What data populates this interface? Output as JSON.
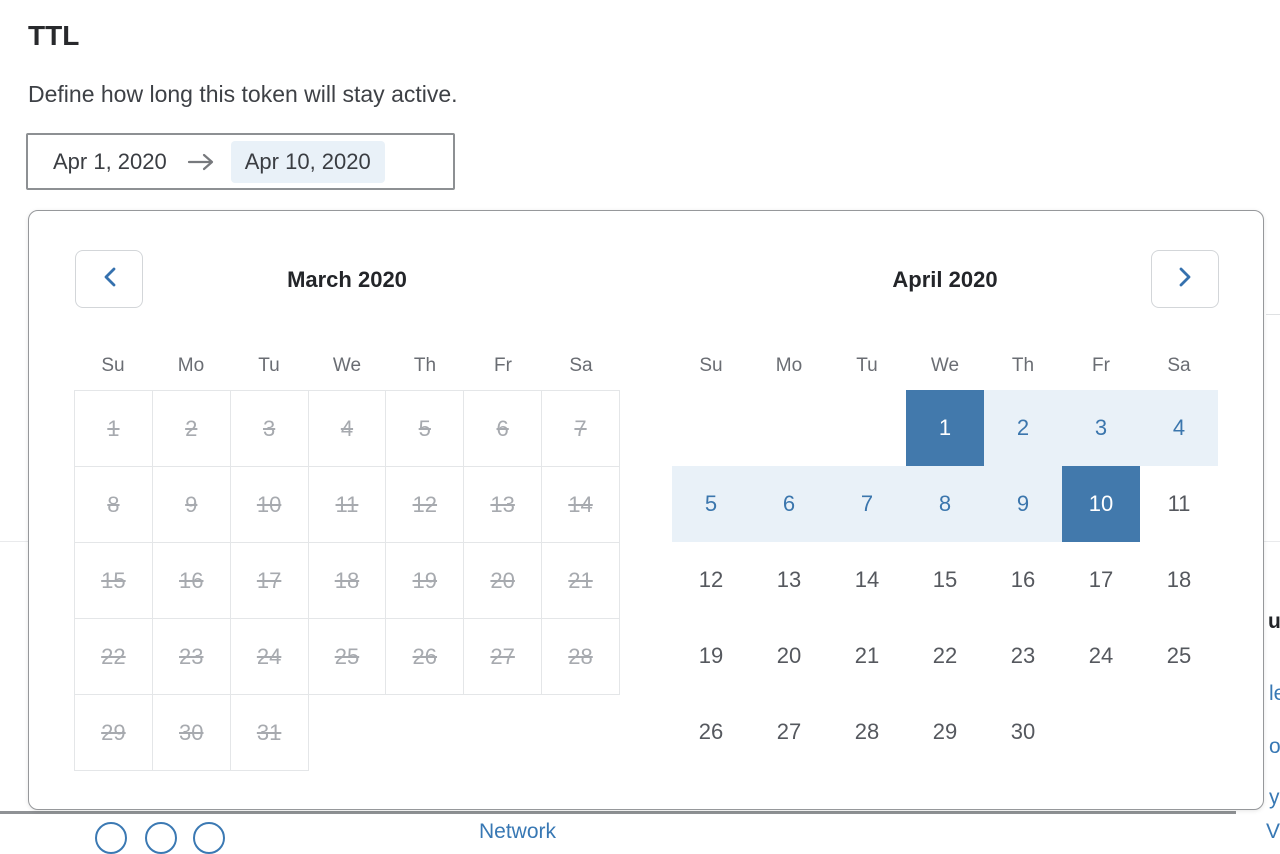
{
  "header": {
    "title": "TTL",
    "subtitle": "Define how long this token will stay active."
  },
  "date_range_input": {
    "start_value": "Apr 1, 2020",
    "arrow_icon": "arrow-right-icon",
    "end_value": "Apr 10, 2020"
  },
  "calendar": {
    "prev_icon": "chevron-left-icon",
    "next_icon": "chevron-right-icon",
    "weekdays": [
      "Su",
      "Mo",
      "Tu",
      "We",
      "Th",
      "Fr",
      "Sa"
    ],
    "months": [
      {
        "title": "March 2020",
        "weeks": [
          [
            {
              "d": "1",
              "s": "dis"
            },
            {
              "d": "2",
              "s": "dis"
            },
            {
              "d": "3",
              "s": "dis"
            },
            {
              "d": "4",
              "s": "dis"
            },
            {
              "d": "5",
              "s": "dis"
            },
            {
              "d": "6",
              "s": "dis"
            },
            {
              "d": "7",
              "s": "dis"
            }
          ],
          [
            {
              "d": "8",
              "s": "dis"
            },
            {
              "d": "9",
              "s": "dis"
            },
            {
              "d": "10",
              "s": "dis"
            },
            {
              "d": "11",
              "s": "dis"
            },
            {
              "d": "12",
              "s": "dis"
            },
            {
              "d": "13",
              "s": "dis"
            },
            {
              "d": "14",
              "s": "dis"
            }
          ],
          [
            {
              "d": "15",
              "s": "dis"
            },
            {
              "d": "16",
              "s": "dis"
            },
            {
              "d": "17",
              "s": "dis"
            },
            {
              "d": "18",
              "s": "dis"
            },
            {
              "d": "19",
              "s": "dis"
            },
            {
              "d": "20",
              "s": "dis"
            },
            {
              "d": "21",
              "s": "dis"
            }
          ],
          [
            {
              "d": "22",
              "s": "dis"
            },
            {
              "d": "23",
              "s": "dis"
            },
            {
              "d": "24",
              "s": "dis"
            },
            {
              "d": "25",
              "s": "dis"
            },
            {
              "d": "26",
              "s": "dis"
            },
            {
              "d": "27",
              "s": "dis"
            },
            {
              "d": "28",
              "s": "dis"
            }
          ],
          [
            {
              "d": "29",
              "s": "dis"
            },
            {
              "d": "30",
              "s": "dis"
            },
            {
              "d": "31",
              "s": "dis"
            },
            {
              "d": "",
              "s": "emp"
            },
            {
              "d": "",
              "s": "emp"
            },
            {
              "d": "",
              "s": "emp"
            },
            {
              "d": "",
              "s": "emp"
            }
          ]
        ]
      },
      {
        "title": "April 2020",
        "weeks": [
          [
            {
              "d": "",
              "s": "emp"
            },
            {
              "d": "",
              "s": "emp"
            },
            {
              "d": "",
              "s": "emp"
            },
            {
              "d": "1",
              "s": "sel"
            },
            {
              "d": "2",
              "s": "rng"
            },
            {
              "d": "3",
              "s": "rng"
            },
            {
              "d": "4",
              "s": "rng"
            }
          ],
          [
            {
              "d": "5",
              "s": "rng"
            },
            {
              "d": "6",
              "s": "rng"
            },
            {
              "d": "7",
              "s": "rng"
            },
            {
              "d": "8",
              "s": "rng"
            },
            {
              "d": "9",
              "s": "rng"
            },
            {
              "d": "10",
              "s": "sel"
            },
            {
              "d": "11",
              "s": "nrm"
            }
          ],
          [
            {
              "d": "12",
              "s": "nrm"
            },
            {
              "d": "13",
              "s": "nrm"
            },
            {
              "d": "14",
              "s": "nrm"
            },
            {
              "d": "15",
              "s": "nrm"
            },
            {
              "d": "16",
              "s": "nrm"
            },
            {
              "d": "17",
              "s": "nrm"
            },
            {
              "d": "18",
              "s": "nrm"
            }
          ],
          [
            {
              "d": "19",
              "s": "nrm"
            },
            {
              "d": "20",
              "s": "nrm"
            },
            {
              "d": "21",
              "s": "nrm"
            },
            {
              "d": "22",
              "s": "nrm"
            },
            {
              "d": "23",
              "s": "nrm"
            },
            {
              "d": "24",
              "s": "nrm"
            },
            {
              "d": "25",
              "s": "nrm"
            }
          ],
          [
            {
              "d": "26",
              "s": "nrm"
            },
            {
              "d": "27",
              "s": "nrm"
            },
            {
              "d": "28",
              "s": "nrm"
            },
            {
              "d": "29",
              "s": "nrm"
            },
            {
              "d": "30",
              "s": "nrm"
            },
            {
              "d": "",
              "s": "emp"
            },
            {
              "d": "",
              "s": "emp"
            }
          ]
        ]
      }
    ],
    "selected_range": {
      "start": "April 1, 2020",
      "end": "April 10, 2020"
    }
  },
  "background": {
    "heading_fragment": "u",
    "link_fragments": [
      "le",
      "o",
      "y",
      "Vi"
    ],
    "bottom_link_text": "Network",
    "circle_count": 3
  },
  "colors": {
    "selected_bg": "#4279ac",
    "range_bg": "#e9f1f8",
    "range_text": "#3b76ad",
    "selected_text": "#ffffff",
    "disabled_text": "#a7aaaf",
    "day_text": "#55585e",
    "accent_blue": "#3571ae",
    "link_blue": "#3878b4"
  }
}
